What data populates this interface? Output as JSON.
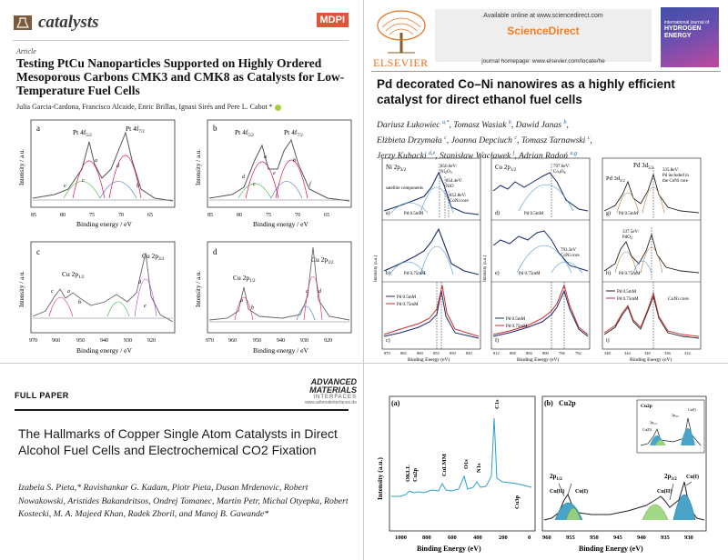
{
  "paper1": {
    "journal": "catalysts",
    "publisher": "MDPI",
    "article_type": "Article",
    "title": "Testing PtCu Nanoparticles Supported on Highly Ordered Mesoporous Carbons CMK3 and CMK8 as Catalysts for Low-Temperature Fuel Cells",
    "authors": "Julia Garcia-Cardona, Francisco Alcaide, Enric Brillas, Ignasi Sirés and Pere L. Cabot *",
    "figure": {
      "ylabel": "Intensity / a.u.",
      "xlabel": "Binding energy / eV",
      "panels": [
        {
          "letter": "a",
          "peak_labels": [
            "Pt 4f5/2",
            "Pt 4f7/2"
          ],
          "component_labels": [
            "a",
            "c",
            "e",
            "d",
            "b"
          ],
          "x_ticks": [
            "85",
            "80",
            "75",
            "70",
            "65"
          ]
        },
        {
          "letter": "b",
          "peak_labels": [
            "Pt 4f5/2",
            "Pt 4f7/2"
          ],
          "component_labels": [
            "a",
            "d",
            "c",
            "e",
            "b",
            "f"
          ],
          "x_ticks": [
            "85",
            "80",
            "75",
            "70",
            "65"
          ]
        },
        {
          "letter": "c",
          "peak_labels": [
            "Cu 2p1/2",
            "Cu 2p3/2"
          ],
          "component_labels": [
            "c",
            "a",
            "b",
            "d",
            "e"
          ],
          "x_ticks": [
            "970",
            "960",
            "950",
            "940",
            "930",
            "920"
          ]
        },
        {
          "letter": "d",
          "peak_labels": [
            "Cu 2p1/2",
            "Cu 2p3/2"
          ],
          "component_labels": [
            "a",
            "b",
            "c",
            "d"
          ],
          "x_ticks": [
            "970",
            "960",
            "950",
            "940",
            "930",
            "920"
          ]
        }
      ]
    }
  },
  "paper2": {
    "publisher": "ELSEVIER",
    "available_online": "Available online at www.sciencedirect.com",
    "site_name": "ScienceDirect",
    "journal_homepage": "journal homepage: www.elsevier.com/locate/he",
    "cover_lines": [
      "international journal of",
      "HYDROGEN ENERGY"
    ],
    "title": "Pd decorated Co–Ni nanowires as a highly efficient catalyst for direct ethanol fuel cells",
    "authors": [
      {
        "name": "Dariusz Łukowiec",
        "aff": "a,*"
      },
      {
        "name": "Tomasz Wasiak",
        "aff": "b"
      },
      {
        "name": "Dawid Janas",
        "aff": "b"
      },
      {
        "name": "Elżbieta Drzymała",
        "aff": "c"
      },
      {
        "name": "Joanna Depciuch",
        "aff": "c"
      },
      {
        "name": "Tomasz Tarnawski",
        "aff": "c"
      },
      {
        "name": "Jerzy Kubacki",
        "aff": "d,e"
      },
      {
        "name": "Stanisław Wacławek",
        "aff": "f"
      },
      {
        "name": "Adrian Radoń",
        "aff": "a,g"
      }
    ],
    "figure": {
      "ylabel": "Intensity (a.u.)",
      "xlabel": "Binding Energy (eV)",
      "col_titles": [
        "Ni 2p3/2",
        "Co 2p1/2",
        "Pd 3d5/2"
      ],
      "col1_labels": [
        "satellite components",
        "856.6eV: Ni2O3",
        "854.4eV: NiO",
        "852.8eV: CoNi core"
      ],
      "col2_labels": [
        "797.6eV: Co3O4",
        "793.3eV CoNi core"
      ],
      "col3_labels": [
        "Pd 3d3/2",
        "335.8eV: Pd included in the CoNi core",
        "337.5eV: PdO2",
        "CoNi core"
      ],
      "subpanels": [
        "a)",
        "b)",
        "c)",
        "d)",
        "e)",
        "f)",
        "g)",
        "h)",
        "i)"
      ],
      "sample_a": "Pd 0.5mM",
      "sample_b": "Pd 0.75mM",
      "col1_ticks": [
        "870",
        "865",
        "860",
        "855",
        "850",
        "845"
      ],
      "col2_ticks": [
        "812",
        "808",
        "804",
        "800",
        "796",
        "792"
      ],
      "col3_ticks": [
        "348",
        "344",
        "340",
        "336",
        "332"
      ]
    }
  },
  "paper3": {
    "section": "FULL PAPER",
    "journal_lines": [
      "ADVANCED",
      "MATERIALS",
      "INTERFACES"
    ],
    "journal_url": "www.advmatinterfaces.de",
    "title": "The Hallmarks of Copper Single Atom Catalysts in Direct Alcohol Fuel Cells and Electrochemical CO2 Fixation",
    "authors": "Izabela S. Pieta,* Ravishankar G. Kadam, Piotr Pieta, Dusan Mrdenovic, Robert Nowakowski, Aristides Bakandritsos, Ondrej Tomanec, Martin Petr, Michal Otyepka, Robert Kostecki, M. A. Majeed Khan, Radek Zboril, and Manoj B. Gawande*"
  },
  "paper4": {
    "figure": {
      "panel_a": {
        "label": "(a)",
        "ylabel": "Intensity (a.u.)",
        "xlabel": "Binding Energy (eV)",
        "x_ticks": [
          "1000",
          "800",
          "600",
          "400",
          "200",
          "0"
        ],
        "peak_labels": [
          "OKLL",
          "Cu2p",
          "CuLMM",
          "O1s",
          "N1s",
          "C1s",
          "Cu3p"
        ]
      },
      "panel_b": {
        "label": "(b)",
        "title": "Cu2p",
        "xlabel": "Binding Energy (eV)",
        "x_ticks": [
          "960",
          "955",
          "950",
          "945",
          "940",
          "935",
          "930"
        ],
        "peak_labels": [
          "2p1/2",
          "Cu(II)",
          "Cu(I)",
          "2p3/2",
          "Cu(II)",
          "Cu(I)"
        ],
        "inset_title": "Cu2p",
        "inset_labels": [
          "2p3/2",
          "2p1/2",
          "Cu(I)",
          "Cu(II)"
        ]
      }
    }
  }
}
